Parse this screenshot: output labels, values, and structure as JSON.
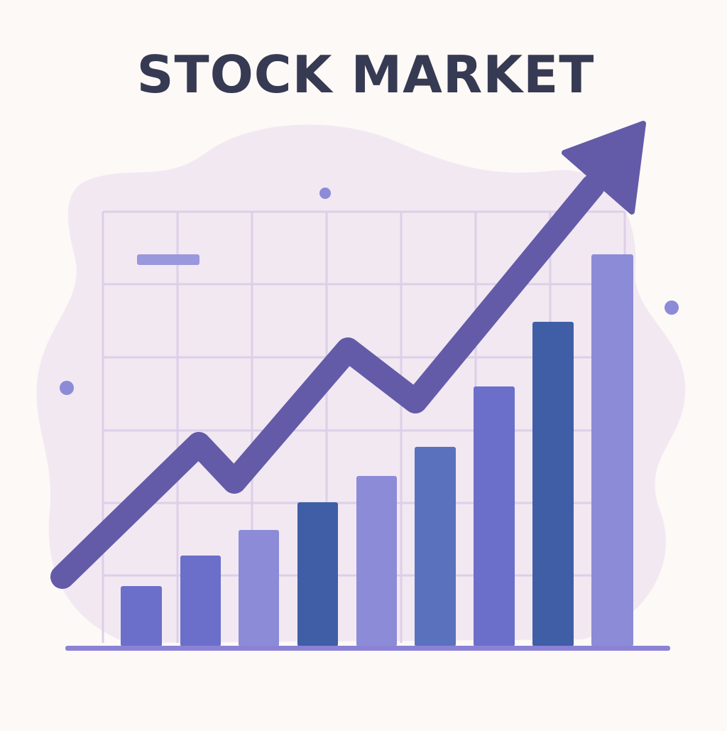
{
  "title": "STOCK MARKET"
}
